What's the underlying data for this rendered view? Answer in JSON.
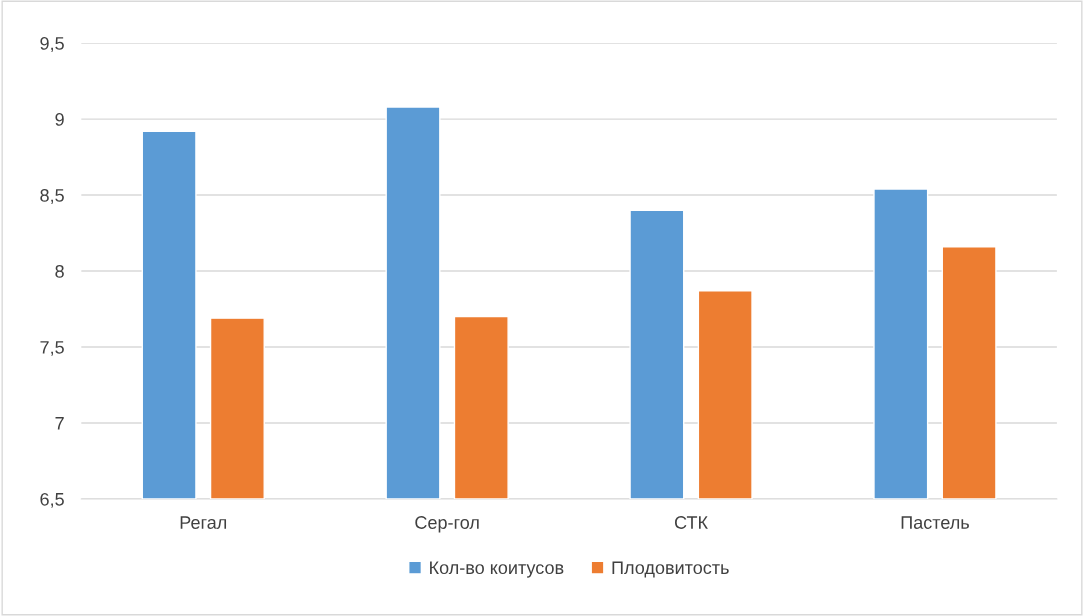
{
  "chart_data": {
    "type": "bar",
    "categories": [
      "Регал",
      "Сер-гол",
      "СТК",
      "Пастель"
    ],
    "series": [
      {
        "name": "Кол-во коитусов",
        "color": "#5b9bd5",
        "values": [
          8.92,
          9.08,
          8.4,
          8.54
        ]
      },
      {
        "name": "Плодовитость",
        "color": "#ed7d31",
        "values": [
          7.69,
          7.7,
          7.87,
          8.16
        ]
      }
    ],
    "ylim": [
      6.5,
      9.5
    ],
    "yticks": [
      {
        "value": 6.5,
        "label": "6,5"
      },
      7,
      {
        "value": 7.5,
        "label": "7,5"
      },
      8,
      {
        "value": 8.5,
        "label": "8,5"
      },
      9,
      {
        "value": 9.5,
        "label": "9,5"
      }
    ],
    "grid": "y",
    "legend": "bottom"
  }
}
